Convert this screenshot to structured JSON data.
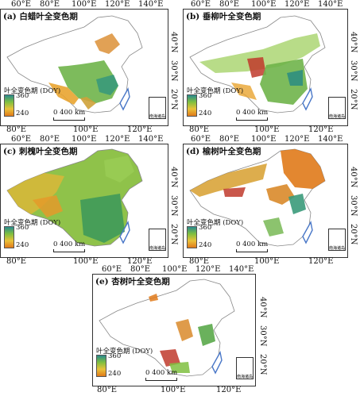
{
  "panels": [
    {
      "title": "(a) 白蜡叶全变色期",
      "xticks": [
        "60°E",
        "80°E",
        "100°E",
        "120°E",
        "140°E"
      ],
      "xticks_bottom": [
        "80°E",
        "100°E",
        "120°E"
      ],
      "yticks": [
        "40°N",
        "30°N",
        "20°N"
      ]
    },
    {
      "title": "(b) 垂柳叶全变色期",
      "xticks": [
        "60°E",
        "80°E",
        "100°E",
        "120°E",
        "140°E"
      ],
      "xticks_bottom": [
        "80°E",
        "100°E",
        "120°E"
      ],
      "yticks": [
        "40°N",
        "30°N",
        "20°N"
      ]
    },
    {
      "title": "(c) 刺槐叶全变色期",
      "xticks": [
        "60°E",
        "80°E",
        "100°E",
        "120°E",
        "140°E"
      ],
      "xticks_bottom": [
        "80°E",
        "100°E",
        "120°E"
      ],
      "yticks": [
        "40°N",
        "30°N",
        "20°N"
      ]
    },
    {
      "title": "(d) 榆树叶全变色期",
      "xticks": [
        "60°E",
        "80°E",
        "100°E",
        "120°E",
        "140°E"
      ],
      "xticks_bottom": [
        "80°E",
        "100°E",
        "120°E"
      ],
      "yticks": [
        "40°N",
        "30°N",
        "20°N"
      ]
    },
    {
      "title": "(e) 杏树叶全变色期",
      "xticks": [
        "60°E",
        "80°E",
        "100°E",
        "120°E",
        "140°E"
      ],
      "xticks_bottom": [
        "80°E",
        "100°E",
        "120°E"
      ],
      "yticks": [
        "40°N",
        "30°N",
        "20°N"
      ]
    }
  ],
  "legend": {
    "title": "叶全变色期 (DOY)",
    "max": "360",
    "min": "240"
  },
  "scale_bar": "0  400 km",
  "inset_label": "南海诸岛",
  "colors": {
    "high": "#2a8a8f",
    "mid": "#7fbf3f",
    "low": "#e07a1a",
    "lowest": "#c0392b",
    "border": "#4a78c8"
  }
}
